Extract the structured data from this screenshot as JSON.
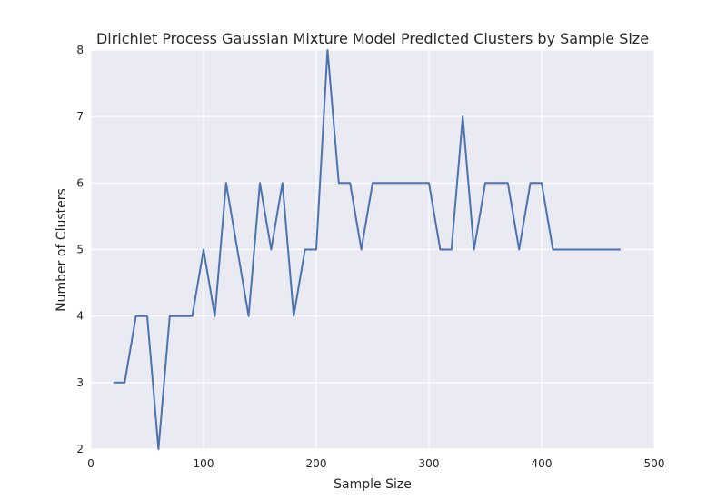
{
  "chart_data": {
    "type": "line",
    "title": "Dirichlet Process Gaussian Mixture Model Predicted Clusters by Sample Size",
    "xlabel": "Sample Size",
    "ylabel": "Number of Clusters",
    "xlim": [
      0,
      500
    ],
    "ylim": [
      2,
      8
    ],
    "xticks": [
      0,
      100,
      200,
      300,
      400,
      500
    ],
    "yticks": [
      2,
      3,
      4,
      5,
      6,
      7,
      8
    ],
    "grid": true,
    "legend": "none",
    "colors": {
      "background": "#eaeaf2",
      "grid": "#ffffff",
      "series": "#4c72b0"
    },
    "series": [
      {
        "x": [
          20,
          30,
          40,
          50,
          60,
          70,
          80,
          90,
          100,
          110,
          120,
          130,
          140,
          150,
          160,
          170,
          180,
          190,
          200,
          210,
          220,
          230,
          240,
          250,
          260,
          270,
          280,
          290,
          300,
          310,
          320,
          330,
          340,
          350,
          360,
          370,
          380,
          390,
          400,
          410,
          420,
          430,
          440,
          450,
          460,
          470
        ],
        "values": [
          3,
          3,
          4,
          4,
          2,
          4,
          4,
          4,
          5,
          4,
          6,
          5,
          4,
          6,
          5,
          6,
          4,
          5,
          5,
          8,
          6,
          6,
          5,
          6,
          6,
          6,
          6,
          6,
          6,
          5,
          5,
          7,
          5,
          6,
          6,
          6,
          5,
          6,
          6,
          5,
          5,
          5,
          5,
          5,
          5,
          5
        ]
      }
    ]
  }
}
